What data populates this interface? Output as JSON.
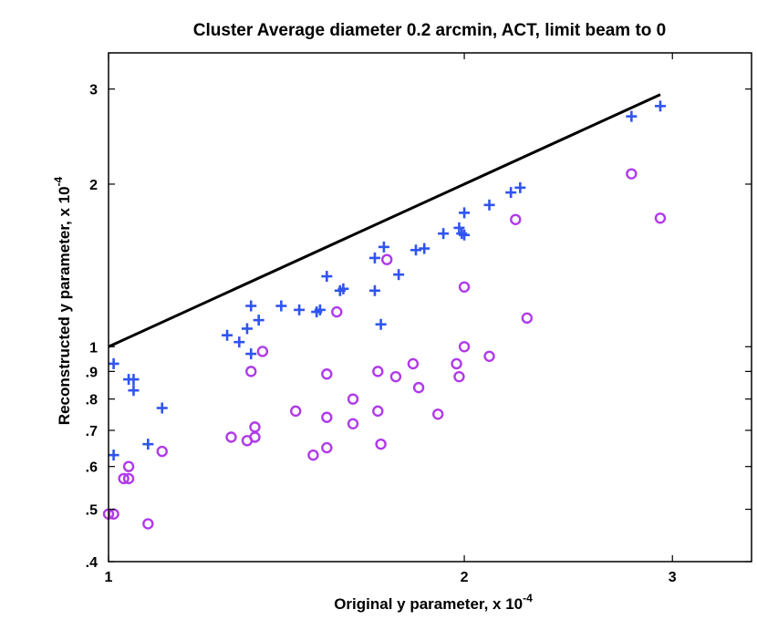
{
  "chart_data": {
    "type": "scatter",
    "title": "Cluster Average diameter 0.2 arcmin, ACT, limit beam to 0",
    "xlabel": "Original y parameter, x 10",
    "xlabel_exponent": "-4",
    "ylabel": "Reconstructed y parameter, x 10",
    "ylabel_exponent": "-4",
    "xscale": "log",
    "yscale": "log",
    "xlim": [
      1.0,
      3.5
    ],
    "ylim": [
      0.4,
      3.5
    ],
    "x_ticks": [
      {
        "value": 1,
        "label": "1"
      },
      {
        "value": 2,
        "label": "2"
      },
      {
        "value": 3,
        "label": "3"
      }
    ],
    "y_ticks": [
      {
        "value": 0.4,
        "label": ".4"
      },
      {
        "value": 0.5,
        "label": ".5"
      },
      {
        "value": 0.6,
        "label": ".6"
      },
      {
        "value": 0.7,
        "label": ".7"
      },
      {
        "value": 0.8,
        "label": ".8"
      },
      {
        "value": 0.9,
        "label": ".9"
      },
      {
        "value": 1,
        "label": "1"
      },
      {
        "value": 2,
        "label": "2"
      },
      {
        "value": 3,
        "label": "3"
      }
    ],
    "reference_line": {
      "name": "y = x",
      "color": "#000000",
      "x": [
        1.0,
        2.93
      ],
      "y": [
        1.0,
        2.93
      ]
    },
    "series": [
      {
        "name": "plus",
        "marker": "plus",
        "color": "#2f54f0",
        "points": [
          [
            1.01,
            0.93
          ],
          [
            1.01,
            0.63
          ],
          [
            1.04,
            0.87
          ],
          [
            1.05,
            0.83
          ],
          [
            1.05,
            0.87
          ],
          [
            1.08,
            0.66
          ],
          [
            1.11,
            0.77
          ],
          [
            1.26,
            1.05
          ],
          [
            1.29,
            1.02
          ],
          [
            1.31,
            1.08
          ],
          [
            1.32,
            0.97
          ],
          [
            1.32,
            1.19
          ],
          [
            1.34,
            1.12
          ],
          [
            1.4,
            1.19
          ],
          [
            1.45,
            1.17
          ],
          [
            1.5,
            1.16
          ],
          [
            1.51,
            1.17
          ],
          [
            1.53,
            1.35
          ],
          [
            1.57,
            1.27
          ],
          [
            1.58,
            1.28
          ],
          [
            1.68,
            1.27
          ],
          [
            1.68,
            1.46
          ],
          [
            1.7,
            1.1
          ],
          [
            1.71,
            1.53
          ],
          [
            1.76,
            1.36
          ],
          [
            1.82,
            1.51
          ],
          [
            1.85,
            1.52
          ],
          [
            1.92,
            1.62
          ],
          [
            1.98,
            1.66
          ],
          [
            1.99,
            1.62
          ],
          [
            2.0,
            1.61
          ],
          [
            2.0,
            1.77
          ],
          [
            2.1,
            1.83
          ],
          [
            2.19,
            1.93
          ],
          [
            2.23,
            1.97
          ],
          [
            2.77,
            2.67
          ],
          [
            2.93,
            2.79
          ]
        ]
      },
      {
        "name": "circle",
        "marker": "circle",
        "color": "#b03ae8",
        "points": [
          [
            1.0,
            0.49
          ],
          [
            1.01,
            0.49
          ],
          [
            1.03,
            0.57
          ],
          [
            1.04,
            0.57
          ],
          [
            1.04,
            0.6
          ],
          [
            1.08,
            0.47
          ],
          [
            1.11,
            0.64
          ],
          [
            1.27,
            0.68
          ],
          [
            1.31,
            0.67
          ],
          [
            1.32,
            0.9
          ],
          [
            1.33,
            0.68
          ],
          [
            1.33,
            0.71
          ],
          [
            1.35,
            0.98
          ],
          [
            1.44,
            0.76
          ],
          [
            1.49,
            0.63
          ],
          [
            1.53,
            0.65
          ],
          [
            1.53,
            0.89
          ],
          [
            1.53,
            0.74
          ],
          [
            1.56,
            1.16
          ],
          [
            1.61,
            0.8
          ],
          [
            1.61,
            0.72
          ],
          [
            1.69,
            0.9
          ],
          [
            1.69,
            0.76
          ],
          [
            1.7,
            0.66
          ],
          [
            1.72,
            1.45
          ],
          [
            1.75,
            0.88
          ],
          [
            1.81,
            0.93
          ],
          [
            1.83,
            0.84
          ],
          [
            1.9,
            0.75
          ],
          [
            1.97,
            0.93
          ],
          [
            1.98,
            0.88
          ],
          [
            2.0,
            1.0
          ],
          [
            2.0,
            1.29
          ],
          [
            2.1,
            0.96
          ],
          [
            2.21,
            1.72
          ],
          [
            2.26,
            1.13
          ],
          [
            2.77,
            2.09
          ],
          [
            2.93,
            1.73
          ]
        ]
      }
    ]
  }
}
